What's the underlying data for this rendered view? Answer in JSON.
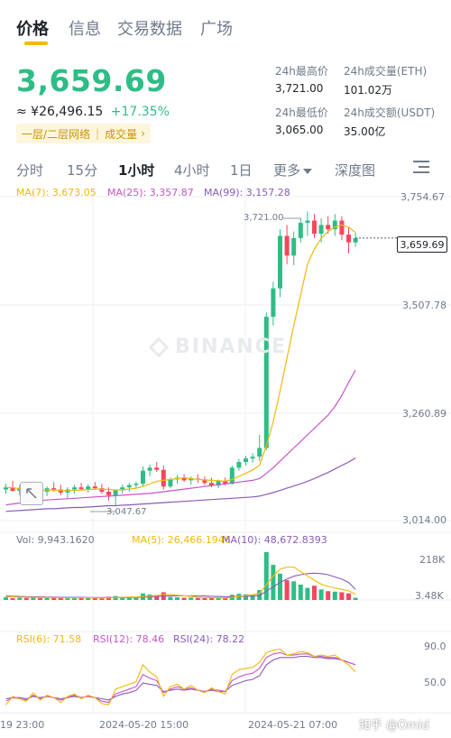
{
  "tabs": [
    {
      "label": "价格",
      "active": true
    },
    {
      "label": "信息",
      "active": false
    },
    {
      "label": "交易数据",
      "active": false
    },
    {
      "label": "广场",
      "active": false
    }
  ],
  "ticker": {
    "price": "3,659.69",
    "fiat_price": "≈ ¥26,496.15",
    "change": "+17.35%",
    "tag1": "一层/二层网络",
    "tag2": "成交量",
    "tag_arrow": "›"
  },
  "stats": {
    "high_label": "24h最高价",
    "high_value": "3,721.00",
    "vol_eth_label": "24h成交量(ETH)",
    "vol_eth_value": "101.02万",
    "low_label": "24h最低价",
    "low_value": "3,065.00",
    "vol_usdt_label": "24h成交额(USDT)",
    "vol_usdt_value": "35.00亿"
  },
  "periods": [
    {
      "label": "分时",
      "active": false
    },
    {
      "label": "15分",
      "active": false
    },
    {
      "label": "1小时",
      "active": true
    },
    {
      "label": "4小时",
      "active": false
    },
    {
      "label": "1日",
      "active": false
    },
    {
      "label": "更多",
      "active": false
    },
    {
      "label": "深度图",
      "active": false
    }
  ],
  "ma_legend": {
    "ma7": "MA(7): 3,673.05",
    "ma25": "MA(25): 3,357.87",
    "ma99": "MA(99): 3,157.28"
  },
  "price_axis": [
    "3,754.67",
    "3,507.78",
    "3,260.89",
    "3,014.00"
  ],
  "markers": {
    "high": "3,721.00",
    "low": "3,047.67"
  },
  "current_price_tag": "3,659.69",
  "watermark": "BINANCE",
  "vol_legend": {
    "vol": "Vol: 9,943.1620",
    "ma5": "MA(5): 26,466.1946",
    "ma10": "MA(10): 48,672.8393"
  },
  "vol_axis": [
    "218K",
    "3.48K"
  ],
  "rsi_legend": {
    "rsi6": "RSI(6): 71.58",
    "rsi12": "RSI(12): 78.46",
    "rsi24": "RSI(24): 78.22"
  },
  "rsi_axis": [
    "90.0",
    "50.0"
  ],
  "time_axis": [
    "19 23:00",
    "2024-05-20 15:00",
    "2024-05-21 07:00"
  ],
  "credit": "知乎 @Omid",
  "colors": {
    "up": "#2ebd85",
    "down": "#f6465d",
    "ma7": "#f0b90b",
    "ma25": "#c855c8",
    "ma99": "#8a5cb8",
    "accent": "#f0b90b"
  },
  "chart_data": {
    "type": "candlestick",
    "price_range": [
      3014.0,
      3754.67
    ],
    "candles": [
      [
        3085,
        3098,
        3075,
        3090
      ],
      [
        3090,
        3105,
        3080,
        3082
      ],
      [
        3082,
        3095,
        3072,
        3088
      ],
      [
        3088,
        3100,
        3078,
        3075
      ],
      [
        3075,
        3090,
        3062,
        3085
      ],
      [
        3085,
        3098,
        3075,
        3080
      ],
      [
        3080,
        3092,
        3070,
        3088
      ],
      [
        3088,
        3102,
        3080,
        3085
      ],
      [
        3085,
        3096,
        3072,
        3078
      ],
      [
        3078,
        3090,
        3065,
        3085
      ],
      [
        3085,
        3096,
        3075,
        3090
      ],
      [
        3090,
        3100,
        3082,
        3086
      ],
      [
        3086,
        3097,
        3078,
        3092
      ],
      [
        3092,
        3102,
        3084,
        3088
      ],
      [
        3088,
        3098,
        3075,
        3080
      ],
      [
        3080,
        3090,
        3060,
        3072
      ],
      [
        3072,
        3086,
        3048,
        3083
      ],
      [
        3083,
        3096,
        3076,
        3090
      ],
      [
        3090,
        3100,
        3080,
        3095
      ],
      [
        3095,
        3103,
        3088,
        3098
      ],
      [
        3098,
        3138,
        3092,
        3128
      ],
      [
        3128,
        3142,
        3115,
        3135
      ],
      [
        3135,
        3148,
        3125,
        3130
      ],
      [
        3130,
        3140,
        3085,
        3092
      ],
      [
        3092,
        3112,
        3088,
        3108
      ],
      [
        3108,
        3118,
        3098,
        3112
      ],
      [
        3112,
        3120,
        3102,
        3106
      ],
      [
        3106,
        3115,
        3096,
        3110
      ],
      [
        3110,
        3120,
        3100,
        3108
      ],
      [
        3108,
        3115,
        3095,
        3100
      ],
      [
        3100,
        3112,
        3090,
        3094
      ],
      [
        3094,
        3108,
        3088,
        3104
      ],
      [
        3104,
        3112,
        3094,
        3098
      ],
      [
        3098,
        3140,
        3096,
        3135
      ],
      [
        3135,
        3155,
        3128,
        3148
      ],
      [
        3148,
        3162,
        3140,
        3156
      ],
      [
        3156,
        3168,
        3146,
        3160
      ],
      [
        3160,
        3210,
        3150,
        3180
      ],
      [
        3180,
        3490,
        3175,
        3480
      ],
      [
        3480,
        3560,
        3460,
        3545
      ],
      [
        3545,
        3680,
        3525,
        3665
      ],
      [
        3665,
        3690,
        3600,
        3620
      ],
      [
        3620,
        3675,
        3598,
        3660
      ],
      [
        3660,
        3705,
        3650,
        3695
      ],
      [
        3695,
        3721,
        3665,
        3700
      ],
      [
        3700,
        3715,
        3660,
        3670
      ],
      [
        3670,
        3705,
        3650,
        3690
      ],
      [
        3690,
        3710,
        3670,
        3680
      ],
      [
        3680,
        3715,
        3665,
        3700
      ],
      [
        3700,
        3710,
        3655,
        3668
      ],
      [
        3668,
        3685,
        3625,
        3650
      ],
      [
        3650,
        3672,
        3640,
        3660
      ]
    ],
    "ma7": [
      3090,
      3089,
      3087,
      3086,
      3085,
      3084,
      3084,
      3084,
      3083,
      3082,
      3083,
      3084,
      3085,
      3086,
      3086,
      3085,
      3084,
      3085,
      3086,
      3088,
      3092,
      3098,
      3104,
      3106,
      3108,
      3110,
      3112,
      3110,
      3108,
      3107,
      3106,
      3105,
      3104,
      3108,
      3115,
      3122,
      3130,
      3140,
      3185,
      3240,
      3310,
      3385,
      3460,
      3530,
      3600,
      3635,
      3660,
      3675,
      3685,
      3690,
      3685,
      3673
    ],
    "ma25": [
      3050,
      3052,
      3054,
      3056,
      3058,
      3060,
      3061,
      3062,
      3063,
      3064,
      3065,
      3066,
      3067,
      3068,
      3069,
      3070,
      3071,
      3072,
      3073,
      3074,
      3075,
      3076,
      3078,
      3080,
      3082,
      3084,
      3086,
      3088,
      3090,
      3092,
      3094,
      3096,
      3098,
      3100,
      3102,
      3104,
      3106,
      3110,
      3122,
      3135,
      3150,
      3165,
      3180,
      3195,
      3210,
      3225,
      3240,
      3255,
      3275,
      3300,
      3330,
      3358
    ],
    "ma99": [
      3035,
      3036,
      3037,
      3038,
      3039,
      3040,
      3041,
      3041,
      3042,
      3043,
      3044,
      3044,
      3045,
      3046,
      3047,
      3048,
      3048,
      3049,
      3050,
      3051,
      3052,
      3053,
      3054,
      3055,
      3056,
      3057,
      3058,
      3059,
      3060,
      3061,
      3062,
      3063,
      3064,
      3065,
      3066,
      3067,
      3068,
      3070,
      3074,
      3078,
      3083,
      3088,
      3093,
      3098,
      3104,
      3110,
      3117,
      3124,
      3132,
      3140,
      3148,
      3157
    ],
    "volume_range_k": [
      3.48,
      218
    ],
    "volume_k": [
      12,
      8,
      10,
      9,
      14,
      8,
      9,
      10,
      11,
      8,
      9,
      10,
      9,
      8,
      7,
      15,
      18,
      12,
      10,
      9,
      30,
      25,
      22,
      35,
      14,
      12,
      10,
      11,
      9,
      8,
      10,
      9,
      8,
      24,
      28,
      26,
      22,
      45,
      218,
      160,
      120,
      90,
      85,
      70,
      55,
      65,
      48,
      40,
      38,
      35,
      30,
      10
    ],
    "vol_ma5_k": [
      15,
      14,
      13,
      12,
      12,
      11,
      11,
      11,
      10,
      10,
      10,
      10,
      10,
      10,
      9,
      10,
      11,
      12,
      13,
      13,
      16,
      18,
      20,
      25,
      25,
      22,
      19,
      17,
      12,
      11,
      10,
      10,
      9,
      12,
      16,
      20,
      24,
      30,
      70,
      110,
      140,
      150,
      150,
      130,
      110,
      90,
      72,
      62,
      55,
      48,
      42,
      26
    ],
    "vol_ma10_k": [
      18,
      17,
      16,
      15,
      15,
      14,
      13,
      13,
      12,
      12,
      12,
      12,
      11,
      11,
      11,
      11,
      11,
      11,
      11,
      11,
      13,
      15,
      16,
      18,
      19,
      19,
      19,
      19,
      18,
      18,
      17,
      16,
      15,
      15,
      16,
      17,
      18,
      20,
      40,
      60,
      80,
      95,
      108,
      115,
      120,
      122,
      120,
      115,
      105,
      95,
      80,
      48
    ],
    "rsi_range": [
      40,
      95
    ],
    "rsi6": [
      45,
      52,
      50,
      48,
      55,
      49,
      53,
      51,
      47,
      52,
      54,
      50,
      53,
      51,
      46,
      45,
      58,
      60,
      62,
      64,
      78,
      72,
      68,
      52,
      60,
      62,
      58,
      61,
      57,
      55,
      59,
      56,
      54,
      70,
      74,
      75,
      76,
      80,
      88,
      90,
      91,
      86,
      87,
      89,
      88,
      85,
      86,
      85,
      86,
      82,
      78,
      72
    ],
    "rsi12": [
      48,
      51,
      50,
      49,
      53,
      50,
      52,
      51,
      49,
      51,
      53,
      51,
      52,
      51,
      48,
      47,
      54,
      56,
      58,
      60,
      70,
      67,
      65,
      55,
      58,
      60,
      58,
      59,
      57,
      56,
      58,
      57,
      56,
      65,
      68,
      70,
      71,
      75,
      84,
      87,
      88,
      86,
      86,
      87,
      87,
      85,
      85,
      84,
      84,
      82,
      80,
      78
    ],
    "rsi24": [
      50,
      51,
      51,
      50,
      52,
      51,
      52,
      51,
      50,
      51,
      52,
      51,
      52,
      51,
      50,
      49,
      52,
      54,
      55,
      57,
      63,
      62,
      61,
      56,
      57,
      58,
      57,
      58,
      57,
      56,
      57,
      56,
      56,
      61,
      63,
      65,
      66,
      69,
      78,
      82,
      84,
      84,
      84,
      85,
      85,
      84,
      84,
      83,
      83,
      82,
      80,
      78
    ]
  }
}
